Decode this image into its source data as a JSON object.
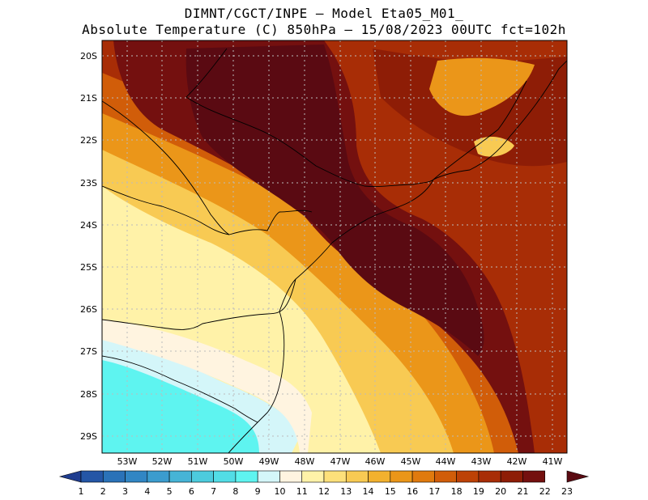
{
  "header": {
    "title_line1": "DIMNT/CGCT/INPE —  Model Eta05_M01_",
    "title_line2": "Absolute Temperature (C) 850hPa —  15/08/2023 00UTC fct=102h"
  },
  "axes": {
    "lat_labels": [
      "20S",
      "21S",
      "22S",
      "23S",
      "24S",
      "25S",
      "26S",
      "27S",
      "28S",
      "29S"
    ],
    "lon_labels": [
      "53W",
      "52W",
      "51W",
      "50W",
      "49W",
      "48W",
      "47W",
      "46W",
      "45W",
      "44W",
      "43W",
      "42W",
      "41W"
    ],
    "grid": "dotted"
  },
  "colorbar": {
    "labels": [
      "1",
      "2",
      "3",
      "4",
      "5",
      "6",
      "7",
      "8",
      "9",
      "10",
      "11",
      "12",
      "13",
      "14",
      "15",
      "16",
      "17",
      "18",
      "19",
      "20",
      "21",
      "22",
      "23"
    ],
    "colors": [
      "#1f3d8f",
      "#2456a6",
      "#2a72b8",
      "#3186c4",
      "#3b9cce",
      "#46b4d6",
      "#4ccbdd",
      "#52dde6",
      "#5ef4f0",
      "#d4f6f9",
      "#fff4e0",
      "#fff2a8",
      "#fde07a",
      "#f8ca53",
      "#f2b12e",
      "#eb9619",
      "#e07a0e",
      "#d15d09",
      "#bd4206",
      "#a82d06",
      "#8e1d06",
      "#74100f",
      "#5a0a12"
    ]
  },
  "map": {
    "region": "Southern/Southeastern Brazil",
    "variable": "Absolute Temperature (C) 850hPa",
    "valid": "15/08/2023 00UTC fct=102h"
  }
}
